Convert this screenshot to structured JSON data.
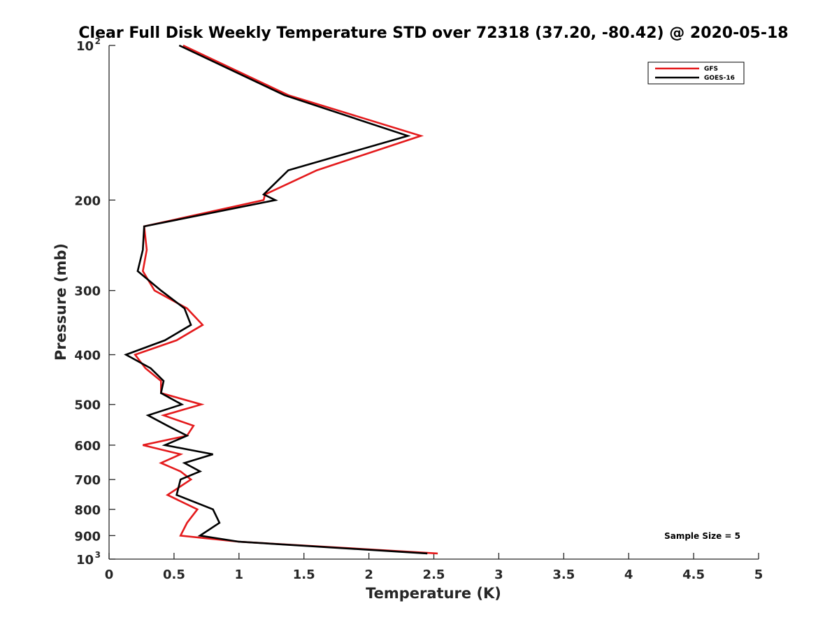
{
  "chart_data": {
    "type": "line",
    "title": "Clear Full Disk Weekly Temperature STD over 72318 (37.20, -80.42) @ 2020-05-18",
    "xlabel": "Temperature (K)",
    "ylabel": "Pressure (mb)",
    "xlim": [
      0,
      5
    ],
    "ylim": [
      100,
      1000
    ],
    "yscale": "log",
    "y_reversed": true,
    "grid": false,
    "legend_position": "top-right",
    "annotation": "Sample Size = 5",
    "x_ticks": [
      {
        "value": 0,
        "label": "0"
      },
      {
        "value": 0.5,
        "label": "0.5"
      },
      {
        "value": 1,
        "label": "1"
      },
      {
        "value": 1.5,
        "label": "1.5"
      },
      {
        "value": 2,
        "label": "2"
      },
      {
        "value": 2.5,
        "label": "2.5"
      },
      {
        "value": 3,
        "label": "3"
      },
      {
        "value": 3.5,
        "label": "3.5"
      },
      {
        "value": 4,
        "label": "4"
      },
      {
        "value": 4.5,
        "label": "4.5"
      },
      {
        "value": 5,
        "label": "5"
      }
    ],
    "y_ticks": [
      {
        "value": 100,
        "label": "10",
        "sup": "2"
      },
      {
        "value": 200,
        "label": "200"
      },
      {
        "value": 300,
        "label": "300"
      },
      {
        "value": 400,
        "label": "400"
      },
      {
        "value": 500,
        "label": "500"
      },
      {
        "value": 600,
        "label": "600"
      },
      {
        "value": 700,
        "label": "700"
      },
      {
        "value": 800,
        "label": "800"
      },
      {
        "value": 900,
        "label": "900"
      },
      {
        "value": 1000,
        "label": "10",
        "sup": "3"
      }
    ],
    "series": [
      {
        "name": "GFS",
        "color": "#e41a1c",
        "points": [
          [
            0.57,
            100
          ],
          [
            1.38,
            125
          ],
          [
            2.4,
            150
          ],
          [
            1.6,
            175
          ],
          [
            1.2,
            195
          ],
          [
            1.19,
            200
          ],
          [
            0.27,
            225
          ],
          [
            0.29,
            250
          ],
          [
            0.26,
            275
          ],
          [
            0.35,
            300
          ],
          [
            0.6,
            325
          ],
          [
            0.72,
            350
          ],
          [
            0.52,
            375
          ],
          [
            0.2,
            400
          ],
          [
            0.28,
            425
          ],
          [
            0.4,
            450
          ],
          [
            0.4,
            475
          ],
          [
            0.71,
            500
          ],
          [
            0.42,
            525
          ],
          [
            0.65,
            550
          ],
          [
            0.6,
            575
          ],
          [
            0.26,
            600
          ],
          [
            0.55,
            625
          ],
          [
            0.4,
            650
          ],
          [
            0.55,
            675
          ],
          [
            0.63,
            700
          ],
          [
            0.45,
            750
          ],
          [
            0.68,
            800
          ],
          [
            0.6,
            850
          ],
          [
            0.55,
            900
          ],
          [
            1.0,
            925
          ],
          [
            2.53,
            975
          ]
        ]
      },
      {
        "name": "GOES-16",
        "color": "#000000",
        "points": [
          [
            0.54,
            100
          ],
          [
            1.35,
            125
          ],
          [
            2.3,
            150
          ],
          [
            1.38,
            175
          ],
          [
            1.19,
            195
          ],
          [
            1.28,
            200
          ],
          [
            0.27,
            225
          ],
          [
            0.26,
            250
          ],
          [
            0.22,
            275
          ],
          [
            0.4,
            300
          ],
          [
            0.58,
            325
          ],
          [
            0.63,
            350
          ],
          [
            0.43,
            375
          ],
          [
            0.13,
            400
          ],
          [
            0.32,
            425
          ],
          [
            0.42,
            450
          ],
          [
            0.4,
            475
          ],
          [
            0.56,
            500
          ],
          [
            0.3,
            525
          ],
          [
            0.45,
            550
          ],
          [
            0.6,
            575
          ],
          [
            0.43,
            600
          ],
          [
            0.8,
            625
          ],
          [
            0.58,
            650
          ],
          [
            0.7,
            675
          ],
          [
            0.55,
            700
          ],
          [
            0.52,
            750
          ],
          [
            0.8,
            800
          ],
          [
            0.85,
            850
          ],
          [
            0.7,
            900
          ],
          [
            1.0,
            925
          ],
          [
            2.45,
            975
          ]
        ]
      }
    ]
  }
}
